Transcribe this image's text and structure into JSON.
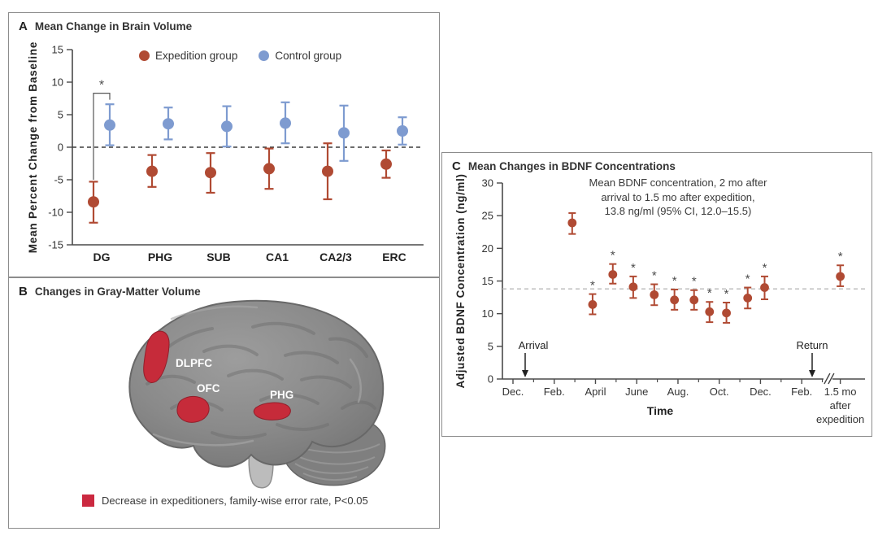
{
  "panelA": {
    "label": "A",
    "title": "Mean Change in Brain Volume",
    "legend": [
      {
        "name": "Expedition group",
        "color": "#b04a33"
      },
      {
        "name": "Control group",
        "color": "#7e9bd0"
      }
    ],
    "chart_data": {
      "type": "scatter",
      "ylabel": "Mean Percent Change from Baseline",
      "ylim": [
        -15,
        15
      ],
      "yticks": [
        15,
        10,
        5,
        0,
        -5,
        -10,
        -15
      ],
      "zero_reference_line": 0,
      "categories": [
        "DG",
        "PHG",
        "SUB",
        "CA1",
        "CA2/3",
        "ERC"
      ],
      "series": [
        {
          "name": "Expedition group",
          "color": "#b04a33",
          "values": [
            -8.4,
            -3.7,
            -3.9,
            -3.3,
            -3.7,
            -2.6
          ],
          "ci_low": [
            -11.6,
            -6.1,
            -7.0,
            -6.4,
            -8.0,
            -4.7
          ],
          "ci_high": [
            -5.3,
            -1.2,
            -0.9,
            -0.2,
            0.6,
            -0.5
          ]
        },
        {
          "name": "Control group",
          "color": "#7e9bd0",
          "values": [
            3.4,
            3.6,
            3.2,
            3.7,
            2.2,
            2.5
          ],
          "ci_low": [
            0.3,
            1.2,
            0.1,
            0.6,
            -2.1,
            0.4
          ],
          "ci_high": [
            6.6,
            6.1,
            6.3,
            6.9,
            6.4,
            4.6
          ]
        }
      ],
      "significance": {
        "category": "DG",
        "symbol": "*"
      }
    }
  },
  "panelB": {
    "label": "B",
    "title": "Changes in Gray-Matter Volume",
    "regions": [
      "DLPFC",
      "OFC",
      "PHG"
    ],
    "highlight_color": "#c62b3a",
    "legend": {
      "color": "#cb2940",
      "text": "Decrease in expeditioners, family-wise error rate, P<0.05"
    }
  },
  "panelC": {
    "label": "C",
    "title": "Mean Changes in BDNF Concentrations",
    "annotation": {
      "line1": "Mean BDNF concentration, 2 mo after",
      "line2": "arrival to 1.5 mo after expedition,",
      "line3": "13.8 ng/ml (95% CI, 12.0–15.5)"
    },
    "arrival_label": "Arrival",
    "return_label": "Return",
    "chart_data": {
      "type": "scatter",
      "xlabel": "Time",
      "ylabel": "Adjusted BDNF Concentration (ng/ml)",
      "ylim": [
        0,
        30
      ],
      "yticks": [
        0,
        5,
        10,
        15,
        20,
        25,
        30
      ],
      "xtick_labels": [
        "Dec.",
        "Feb.",
        "April",
        "June",
        "Aug.",
        "Oct.",
        "Dec.",
        "Feb."
      ],
      "xtick_months": [
        0,
        2,
        4,
        6,
        8,
        10,
        12,
        14
      ],
      "minor_tick_months": [
        1,
        3,
        5,
        7,
        9,
        11,
        13,
        15
      ],
      "after_break_label": "1.5 mo\nafter\nexpedition",
      "after_break_month": 15.87,
      "axis_break_month": 15.25,
      "reference_line": 13.8,
      "series": [
        {
          "name": "Adjusted BDNF concentration",
          "color": "#b04a33",
          "significance_symbol": "*",
          "x_months": [
            2.87,
            3.86,
            4.84,
            5.83,
            6.85,
            7.83,
            8.78,
            9.53,
            10.35,
            11.38,
            12.2,
            15.87
          ],
          "values": [
            23.9,
            11.4,
            16.0,
            14.1,
            12.9,
            12.1,
            12.1,
            10.3,
            10.1,
            12.4,
            14.0,
            15.7
          ],
          "ci_low": [
            22.2,
            9.9,
            14.6,
            12.4,
            11.3,
            10.6,
            10.6,
            8.7,
            8.6,
            10.8,
            12.2,
            14.2
          ],
          "ci_high": [
            25.4,
            13.0,
            17.6,
            15.7,
            14.5,
            13.7,
            13.6,
            11.8,
            11.7,
            14.0,
            15.7,
            17.4
          ],
          "significant": [
            false,
            true,
            true,
            true,
            true,
            true,
            true,
            true,
            true,
            true,
            true,
            true
          ]
        }
      ]
    }
  }
}
